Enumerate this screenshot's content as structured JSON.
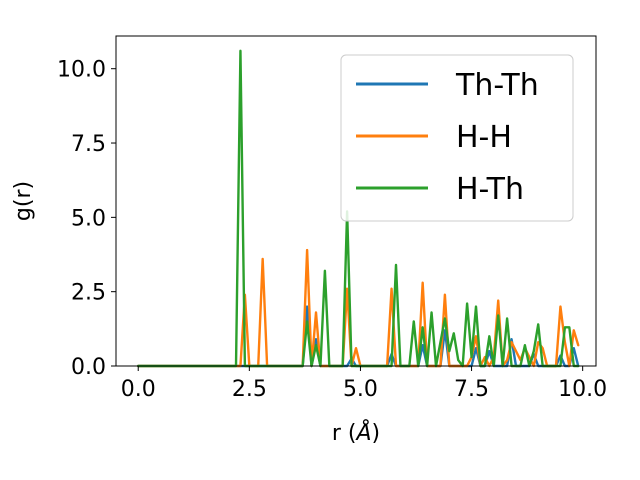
{
  "chart_data": {
    "type": "line",
    "title": "",
    "xlabel": "r ($\\AA$)",
    "xlabel_parts": {
      "prefix": "r (",
      "symbol": "Å",
      "suffix": ")"
    },
    "ylabel": "g(r)",
    "xlim": [
      -0.5,
      10.3
    ],
    "ylim": [
      0,
      11.1
    ],
    "xticks": [
      0.0,
      2.5,
      5.0,
      7.5,
      10.0
    ],
    "xtick_labels": [
      "0.0",
      "2.5",
      "5.0",
      "7.5",
      "10.0"
    ],
    "yticks": [
      0.0,
      2.5,
      5.0,
      7.5,
      10.0
    ],
    "ytick_labels": [
      "0.0",
      "2.5",
      "5.0",
      "7.5",
      "10.0"
    ],
    "grid": false,
    "legend_position": "top-right",
    "series": [
      {
        "name": "Th-Th",
        "color": "#1f77b4",
        "x": [
          0.0,
          3.7,
          3.8,
          3.9,
          4.0,
          4.1,
          4.2,
          4.7,
          4.8,
          4.9,
          5.6,
          5.7,
          5.8,
          6.3,
          6.4,
          6.5,
          6.8,
          6.9,
          7.0,
          7.5,
          7.6,
          7.7,
          7.8,
          7.9,
          8.0,
          8.3,
          8.4,
          8.5,
          8.8,
          8.9,
          9.0,
          9.4,
          9.5,
          9.6,
          9.7,
          9.8,
          9.9
        ],
        "y": [
          0.0,
          0.0,
          2.0,
          0.0,
          0.9,
          0.0,
          0.0,
          0.0,
          0.25,
          0.0,
          0.0,
          0.4,
          0.0,
          0.0,
          0.7,
          0.0,
          0.0,
          1.2,
          0.0,
          0.0,
          0.6,
          0.0,
          0.0,
          0.5,
          0.0,
          0.0,
          0.9,
          0.0,
          0.0,
          0.4,
          0.0,
          0.0,
          0.35,
          0.0,
          0.0,
          0.6,
          0.0
        ]
      },
      {
        "name": "H-H",
        "color": "#ff7f0e",
        "x": [
          0.0,
          2.3,
          2.4,
          2.5,
          2.7,
          2.8,
          2.9,
          3.7,
          3.8,
          3.9,
          4.0,
          4.1,
          4.5,
          4.6,
          4.7,
          4.8,
          4.9,
          5.0,
          5.6,
          5.7,
          5.8,
          5.9,
          6.1,
          6.2,
          6.3,
          6.4,
          6.5,
          6.6,
          6.7,
          6.8,
          6.9,
          7.0,
          7.1,
          7.2,
          7.3,
          7.4,
          7.5,
          7.6,
          7.7,
          7.8,
          7.9,
          8.0,
          8.1,
          8.2,
          8.3,
          8.4,
          8.5,
          8.6,
          8.7,
          8.8,
          8.9,
          9.0,
          9.1,
          9.2,
          9.3,
          9.4,
          9.5,
          9.6,
          9.7,
          9.8,
          9.9
        ],
        "y": [
          0.0,
          0.0,
          2.4,
          0.0,
          0.0,
          3.6,
          0.0,
          0.0,
          3.9,
          0.0,
          1.8,
          0.0,
          0.0,
          0.0,
          2.6,
          0.0,
          0.6,
          0.0,
          0.0,
          2.6,
          0.0,
          0.0,
          0.0,
          0.0,
          0.0,
          2.8,
          0.0,
          0.0,
          0.0,
          0.0,
          2.4,
          0.0,
          0.0,
          0.0,
          0.0,
          0.0,
          0.3,
          1.0,
          0.0,
          0.3,
          0.0,
          0.3,
          2.2,
          0.0,
          0.2,
          0.8,
          0.5,
          0.2,
          0.6,
          0.3,
          0.0,
          0.8,
          0.6,
          0.0,
          0.0,
          0.0,
          2.0,
          0.8,
          0.0,
          1.2,
          0.7
        ]
      },
      {
        "name": "H-Th",
        "color": "#2ca02c",
        "x": [
          0.0,
          2.2,
          2.3,
          2.4,
          2.5,
          3.7,
          3.8,
          3.9,
          4.0,
          4.1,
          4.2,
          4.3,
          4.5,
          4.6,
          4.7,
          4.8,
          4.9,
          5.6,
          5.7,
          5.8,
          5.9,
          6.0,
          6.1,
          6.2,
          6.3,
          6.4,
          6.5,
          6.6,
          6.7,
          6.8,
          6.9,
          7.0,
          7.1,
          7.2,
          7.3,
          7.4,
          7.5,
          7.6,
          7.7,
          7.8,
          7.9,
          8.0,
          8.1,
          8.2,
          8.3,
          8.4,
          8.5,
          8.6,
          8.7,
          8.8,
          8.9,
          9.0,
          9.1,
          9.2,
          9.3,
          9.4,
          9.5,
          9.6,
          9.7,
          9.8,
          9.9
        ],
        "y": [
          0.0,
          0.0,
          10.6,
          0.0,
          0.0,
          0.0,
          1.5,
          0.0,
          0.7,
          0.0,
          3.2,
          0.0,
          0.0,
          0.0,
          5.2,
          0.0,
          0.0,
          0.0,
          0.0,
          3.4,
          0.0,
          0.0,
          0.0,
          1.5,
          0.0,
          1.3,
          0.0,
          1.8,
          0.0,
          0.8,
          1.6,
          0.5,
          1.1,
          0.2,
          0.0,
          2.1,
          0.3,
          2.0,
          0.0,
          0.0,
          1.0,
          0.0,
          1.7,
          0.0,
          1.6,
          0.0,
          0.0,
          0.0,
          0.7,
          0.0,
          0.5,
          1.4,
          0.0,
          0.0,
          0.0,
          0.0,
          0.0,
          1.3,
          1.3,
          0.0,
          0.0
        ]
      }
    ]
  }
}
